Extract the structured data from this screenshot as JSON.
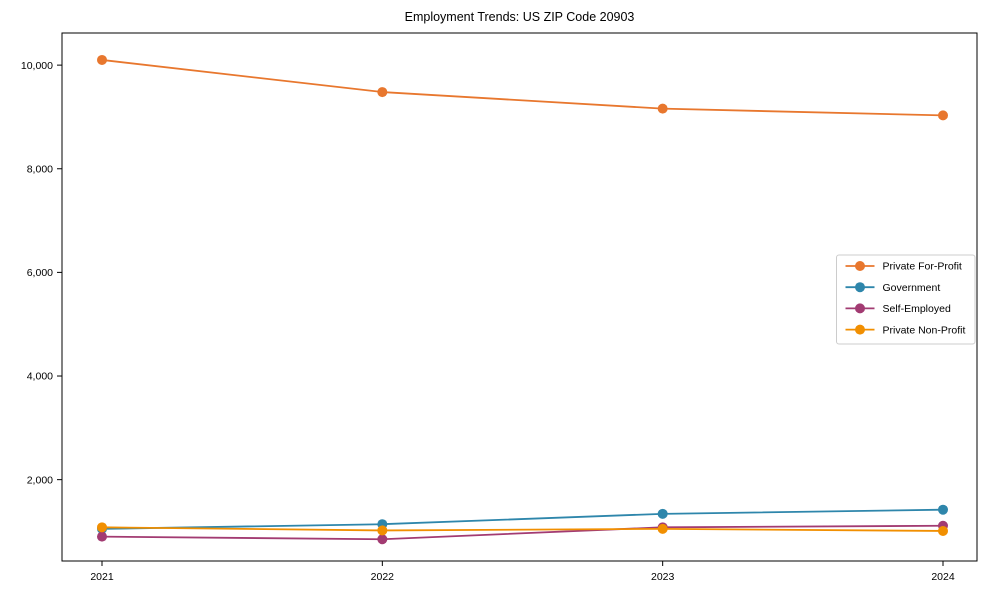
{
  "chart_data": {
    "type": "line",
    "title": "Employment Trends: US ZIP Code 20903",
    "x": [
      2021,
      2022,
      2023,
      2024
    ],
    "xtick_labels": [
      "2021",
      "2022",
      "2023",
      "2024"
    ],
    "yticks": [
      2000,
      4000,
      6000,
      8000,
      10000
    ],
    "ytick_labels": [
      "2,000",
      "4,000",
      "6,000",
      "8,000",
      "10,000"
    ],
    "ylim": [
      430,
      10620
    ],
    "grid": false,
    "legend_position": "center-right",
    "marker": "circle",
    "series": [
      {
        "name": "Private For-Profit",
        "color": "#e8772e",
        "values": [
          10100,
          9480,
          9160,
          9030
        ]
      },
      {
        "name": "Government",
        "color": "#2e86ab",
        "values": [
          1050,
          1140,
          1340,
          1420
        ]
      },
      {
        "name": "Self-Employed",
        "color": "#a23b72",
        "values": [
          900,
          850,
          1080,
          1110
        ]
      },
      {
        "name": "Private Non-Profit",
        "color": "#f18f01",
        "values": [
          1080,
          1020,
          1050,
          1010
        ]
      }
    ]
  }
}
